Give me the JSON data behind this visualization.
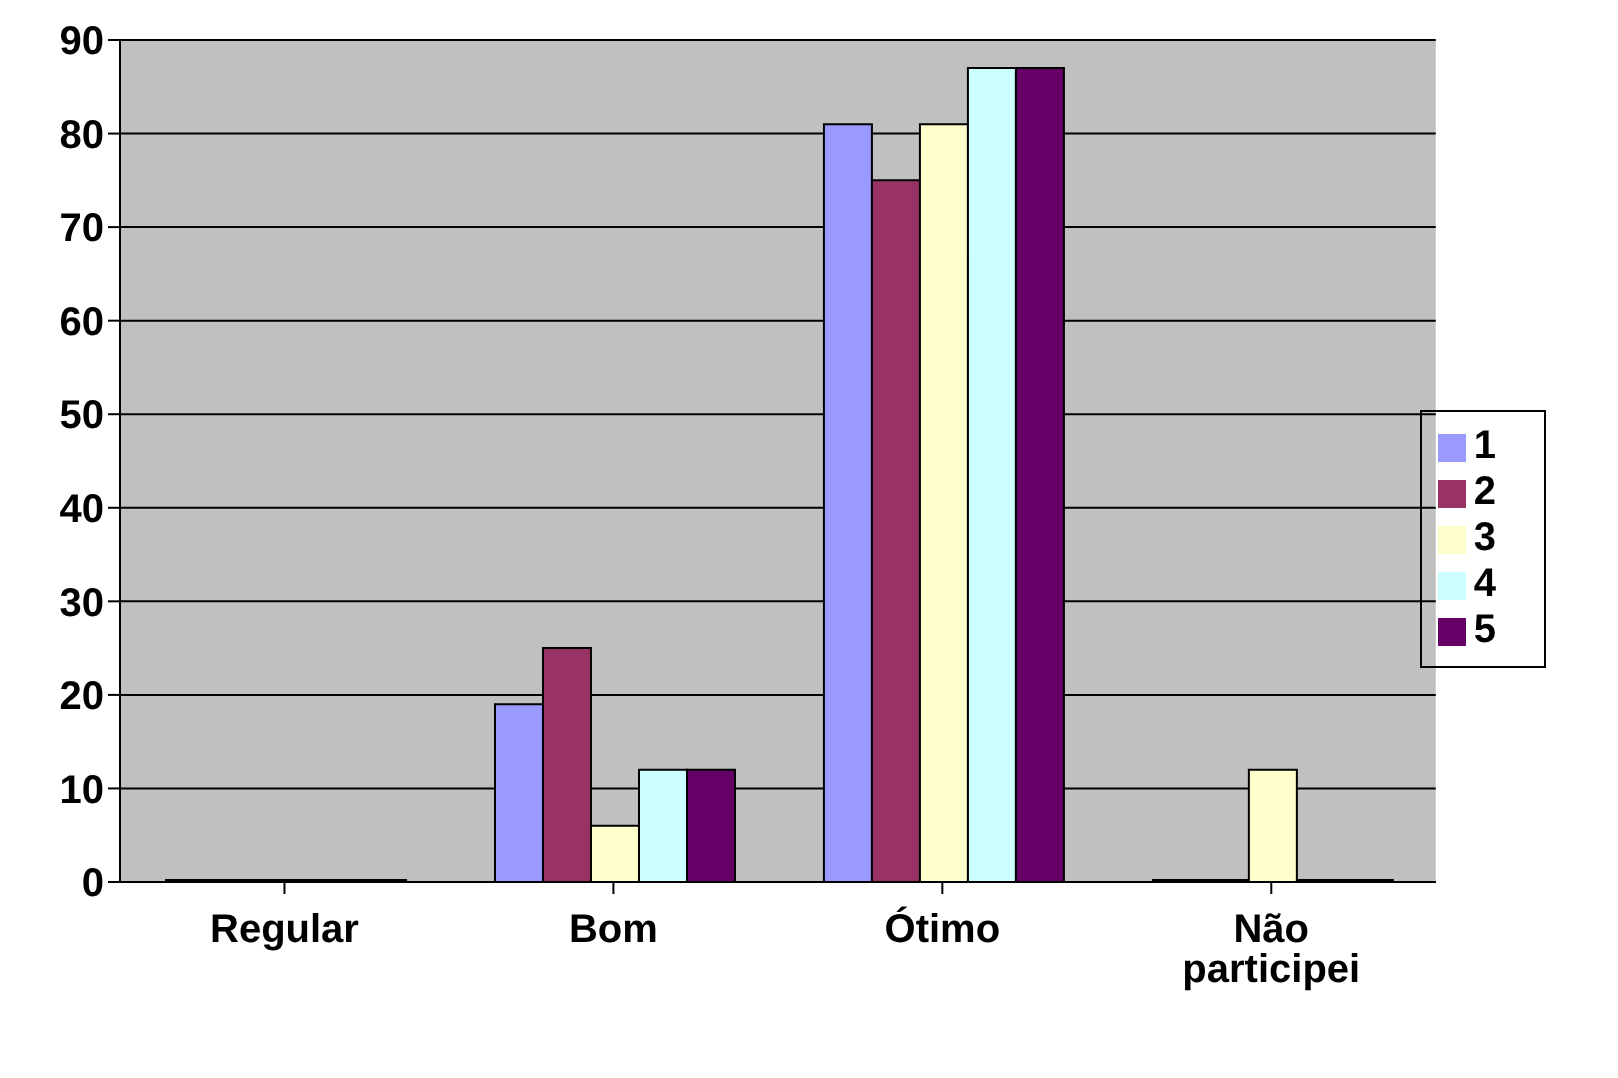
{
  "chart_data": {
    "type": "bar",
    "categories": [
      "Regular",
      "Bom",
      "Ótimo",
      "Não participei"
    ],
    "series": [
      {
        "name": "1",
        "color": "#9999ff",
        "values": [
          0,
          19,
          81,
          0
        ]
      },
      {
        "name": "2",
        "color": "#993366",
        "values": [
          0,
          25,
          75,
          0
        ]
      },
      {
        "name": "3",
        "color": "#ffffcc",
        "values": [
          0,
          6,
          81,
          12
        ]
      },
      {
        "name": "4",
        "color": "#ccffff",
        "values": [
          0,
          12,
          87,
          0
        ]
      },
      {
        "name": "5",
        "color": "#660066",
        "values": [
          0,
          12,
          87,
          0
        ]
      }
    ],
    "ylim": [
      0,
      90
    ],
    "yticks": [
      0,
      10,
      20,
      30,
      40,
      50,
      60,
      70,
      80,
      90
    ],
    "grid": "y",
    "legend": "right"
  }
}
